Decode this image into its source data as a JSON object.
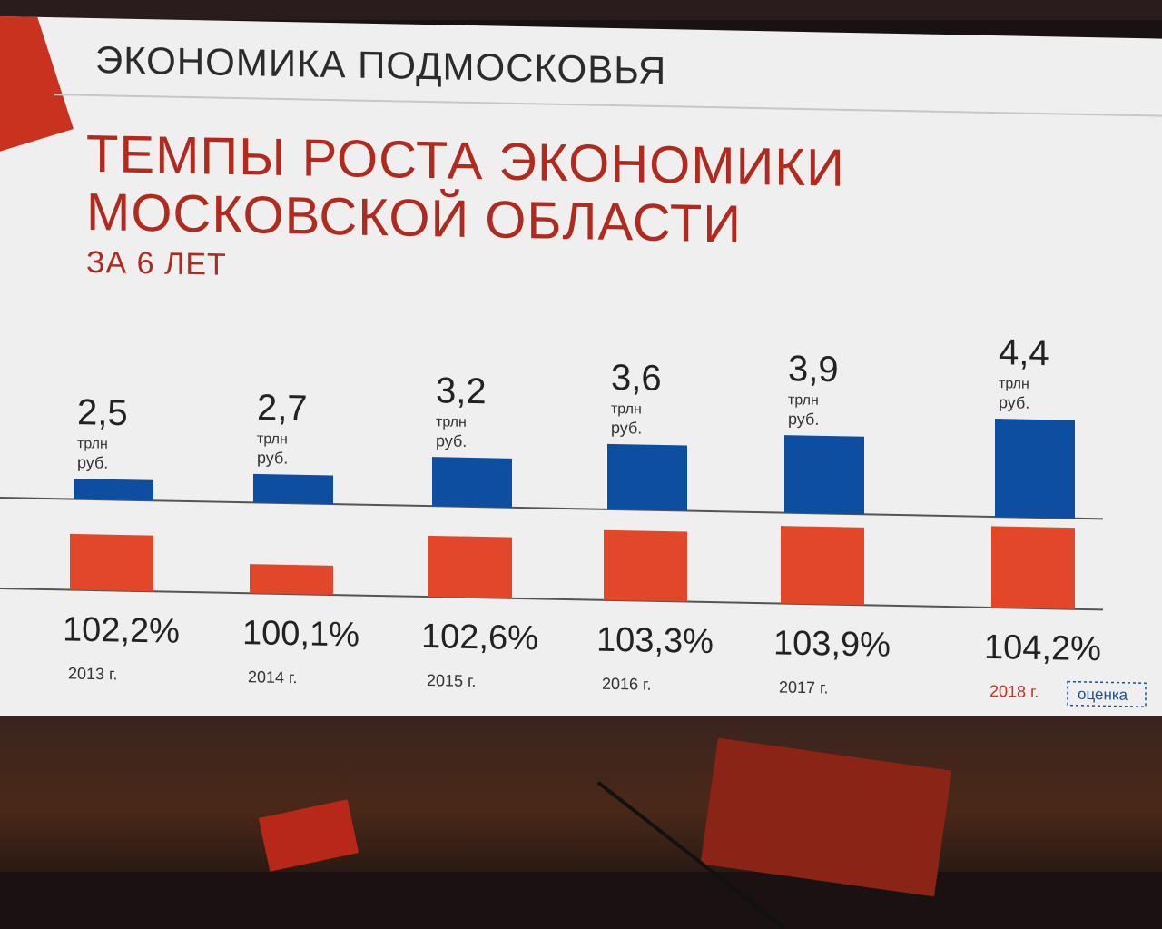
{
  "header": {
    "section_label": "ЭКОНОМИКА ПОДМОСКОВЬЯ"
  },
  "colors": {
    "title": "#b12a1e",
    "gdp_bar": "#0e4ea0",
    "growth_bar": "#e2472a",
    "note_box": "#1f4e9c"
  },
  "chart_data": {
    "type": "bar",
    "title": "ТЕМПЫ РОСТА ЭКОНОМИКИ МОСКОВСКОЙ ОБЛАСТИ",
    "subtitle": "ЗА 6 ЛЕТ",
    "categories": [
      "2013 г.",
      "2014 г.",
      "2015 г.",
      "2016 г.",
      "2017 г.",
      "2018 г."
    ],
    "series": [
      {
        "values": [
          2.5,
          2.7,
          3.2,
          3.6,
          3.9,
          4.4
        ],
        "labels": [
          "2,5",
          "2,7",
          "3,2",
          "3,6",
          "3,9",
          "4,4"
        ],
        "unit_line1": "трлн",
        "unit_line2": "руб."
      },
      {
        "values": [
          102.2,
          100.1,
          102.6,
          103.3,
          103.9,
          104.2
        ],
        "labels": [
          "102,2%",
          "100,1%",
          "102,6%",
          "103,3%",
          "103,9%",
          "104,2%"
        ]
      }
    ],
    "highlight_category_index": 5,
    "highlight_note": "оценка",
    "grid": false,
    "legend": "none"
  }
}
